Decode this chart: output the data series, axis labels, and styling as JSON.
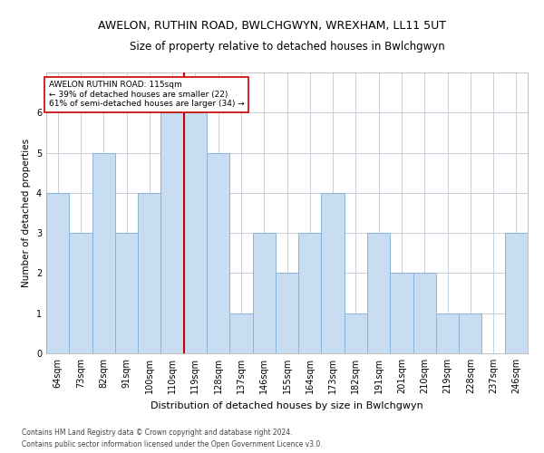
{
  "title": "AWELON, RUTHIN ROAD, BWLCHGWYN, WREXHAM, LL11 5UT",
  "subtitle": "Size of property relative to detached houses in Bwlchgwyn",
  "xlabel": "Distribution of detached houses by size in Bwlchgwyn",
  "ylabel": "Number of detached properties",
  "footnote1": "Contains HM Land Registry data © Crown copyright and database right 2024.",
  "footnote2": "Contains public sector information licensed under the Open Government Licence v3.0.",
  "categories": [
    "64sqm",
    "73sqm",
    "82sqm",
    "91sqm",
    "100sqm",
    "110sqm",
    "119sqm",
    "128sqm",
    "137sqm",
    "146sqm",
    "155sqm",
    "164sqm",
    "173sqm",
    "182sqm",
    "191sqm",
    "201sqm",
    "210sqm",
    "219sqm",
    "228sqm",
    "237sqm",
    "246sqm"
  ],
  "values": [
    4,
    3,
    5,
    3,
    4,
    6,
    6,
    5,
    1,
    3,
    2,
    3,
    4,
    1,
    3,
    2,
    2,
    1,
    1,
    0,
    3
  ],
  "bar_color": "#c9ddf2",
  "bar_edge_color": "#89b4d9",
  "grid_color": "#c8d0dc",
  "vline_x_index": 6,
  "vline_color": "#cc0000",
  "annotation_text": "AWELON RUTHIN ROAD: 115sqm\n← 39% of detached houses are smaller (22)\n61% of semi-detached houses are larger (34) →",
  "annotation_box_color": "#ffffff",
  "annotation_box_edge_color": "#cc0000",
  "ylim": [
    0,
    7
  ],
  "yticks": [
    0,
    1,
    2,
    3,
    4,
    5,
    6,
    7
  ],
  "title_fontsize": 9,
  "subtitle_fontsize": 8.5,
  "xlabel_fontsize": 8,
  "ylabel_fontsize": 7.5,
  "tick_fontsize": 7,
  "annotation_fontsize": 6.5,
  "footnote_fontsize": 5.5
}
